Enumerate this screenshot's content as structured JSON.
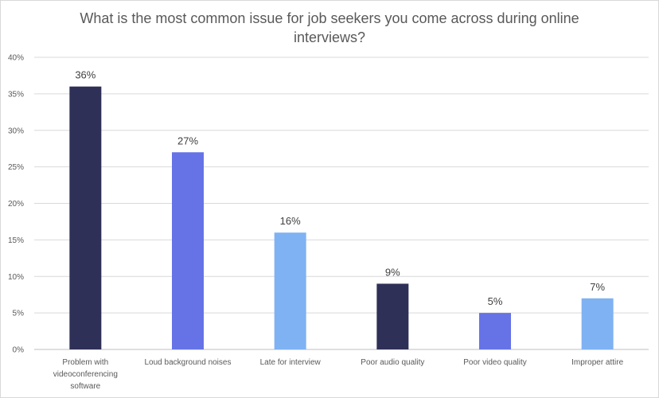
{
  "chart_data": {
    "type": "bar",
    "title": "What is the most common issue for job seekers you come across during online interviews?",
    "xlabel": "",
    "ylabel": "",
    "categories": [
      "Problem with videoconferencing software",
      "Loud background noises",
      "Late for interview",
      "Poor audio quality",
      "Poor video quality",
      "Improper attire"
    ],
    "category_lines": [
      [
        "Problem with",
        "videoconferencing",
        "software"
      ],
      [
        "Loud background noises"
      ],
      [
        "Late for interview"
      ],
      [
        "Poor audio quality"
      ],
      [
        "Poor video quality"
      ],
      [
        "Improper attire"
      ]
    ],
    "values": [
      36,
      27,
      16,
      9,
      5,
      7
    ],
    "data_labels": [
      "36%",
      "27%",
      "16%",
      "9%",
      "5%",
      "7%"
    ],
    "bar_colors": [
      "#2e3057",
      "#6673e6",
      "#7fb2f3",
      "#2e3057",
      "#6673e6",
      "#7fb2f3"
    ],
    "ylim": [
      0,
      40
    ],
    "yticks": [
      0,
      5,
      10,
      15,
      20,
      25,
      30,
      35,
      40
    ],
    "ytick_labels": [
      "0%",
      "5%",
      "10%",
      "15%",
      "20%",
      "25%",
      "30%",
      "35%",
      "40%"
    ],
    "grid": true,
    "legend": "none"
  }
}
